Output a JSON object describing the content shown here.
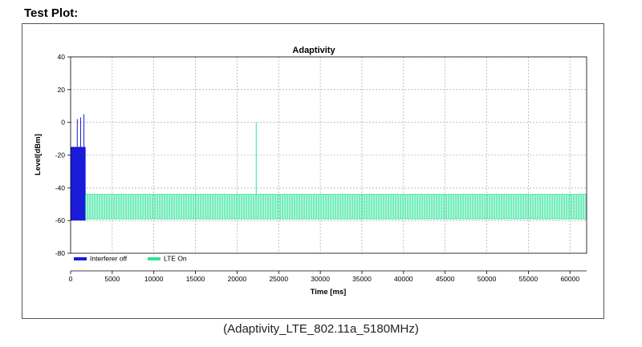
{
  "page": {
    "heading": "Test Plot:",
    "caption": "(Adaptivity_LTE_802.11a_5180MHz)"
  },
  "chart_data": {
    "type": "line",
    "title": "Adaptivity",
    "xlabel": "Time [ms]",
    "ylabel": "Level[dBm]",
    "xlim": [
      0,
      62000
    ],
    "ylim": [
      -80,
      40
    ],
    "xticks": [
      0,
      5000,
      10000,
      15000,
      20000,
      25000,
      30000,
      35000,
      40000,
      45000,
      50000,
      55000,
      60000
    ],
    "yticks": [
      40,
      20,
      0,
      -20,
      -40,
      -60,
      -80
    ],
    "grid": true,
    "legend_position": "bottom-left",
    "series": [
      {
        "name": "Interferer off",
        "color": "#1a1adb",
        "segments": [
          {
            "x_start": 0,
            "x_end": 1800,
            "y_low": -60,
            "y_high": -15
          }
        ],
        "spikes": [
          {
            "x": 800,
            "y": 2
          },
          {
            "x": 1200,
            "y": 3
          },
          {
            "x": 1600,
            "y": 5
          }
        ]
      },
      {
        "name": "LTE On",
        "color": "#2ee39a",
        "segments": [
          {
            "x_start": 1800,
            "x_end": 62000,
            "y_low": -59,
            "y_high": -44
          }
        ],
        "spikes": [
          {
            "x": 22300,
            "y": 0
          }
        ]
      }
    ]
  }
}
